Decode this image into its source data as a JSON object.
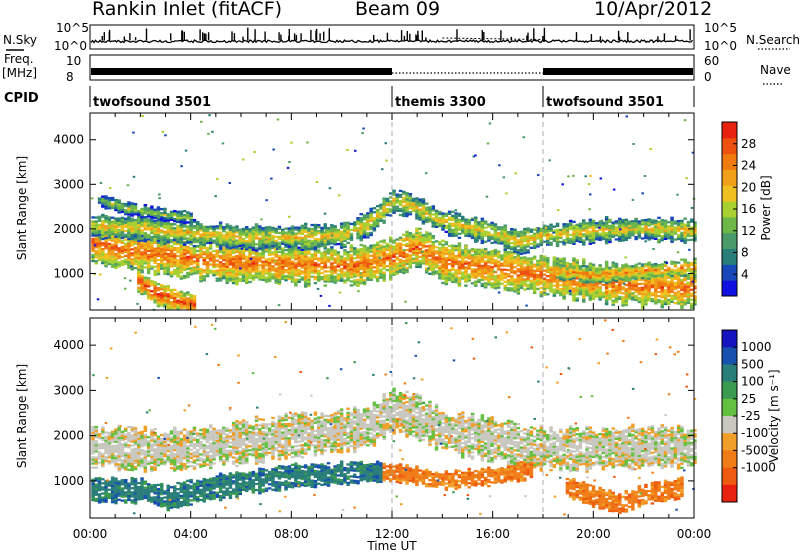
{
  "header": {
    "title": "Rankin Inlet (fitACF)",
    "beam": "Beam 09",
    "date": "10/Apr/2012"
  },
  "strip_nsky": {
    "left_label": "N.Sky",
    "right_label": "N.Search",
    "top_tick": "10^5",
    "bottom_tick": "10^0"
  },
  "strip_freq": {
    "left_label_line1": "Freq.",
    "left_label_line2": "[MHz]",
    "right_label": "Nave",
    "left_top_tick": "10",
    "left_bottom_tick": "8",
    "right_top_tick": "60",
    "right_bottom_tick": "0"
  },
  "cpid": {
    "label": "CPID",
    "segments": [
      {
        "name": "twofsound 3501",
        "start_hour": 0,
        "end_hour": 12
      },
      {
        "name": "themis 3300",
        "start_hour": 12,
        "end_hour": 18
      },
      {
        "name": "twofsound 3501",
        "start_hour": 18,
        "end_hour": 24
      }
    ]
  },
  "chart_data": [
    {
      "type": "heatmap",
      "name": "power-panel",
      "ylabel": "Slant Range [km]",
      "xlim": [
        0,
        24
      ],
      "ylim": [
        180,
        4600
      ],
      "x_ticks": [
        "00:00",
        "04:00",
        "08:00",
        "12:00",
        "16:00",
        "20:00",
        "00:00"
      ],
      "y_ticks": [
        1000,
        2000,
        3000,
        4000
      ],
      "colorbar": {
        "label": "Power [dB]",
        "range": [
          0,
          32
        ],
        "ticks": [
          4,
          8,
          12,
          16,
          20,
          24,
          28
        ],
        "colors": [
          "#1010e0",
          "#1848b8",
          "#2a7e7a",
          "#4a9a6a",
          "#6cb64a",
          "#a8d030",
          "#f0c020",
          "#f0a018",
          "#f07c10",
          "#ee5010",
          "#e82010"
        ]
      },
      "bands": [
        {
          "points": [
            [
              0.0,
              1700
            ],
            [
              1.5,
              1500
            ],
            [
              3.0,
              1400
            ],
            [
              5.0,
              1250
            ],
            [
              7.0,
              1200
            ],
            [
              9.0,
              1180
            ],
            [
              10.5,
              1150
            ],
            [
              12.0,
              1350
            ],
            [
              13.0,
              1600
            ],
            [
              14.0,
              1250
            ],
            [
              16.0,
              1100
            ],
            [
              18.0,
              950
            ],
            [
              20.0,
              800
            ],
            [
              22.0,
              700
            ],
            [
              24.0,
              650
            ]
          ],
          "half_width": 380,
          "power": 26
        },
        {
          "points": [
            [
              0.0,
              2050
            ],
            [
              2.0,
              2000
            ],
            [
              4.0,
              1900
            ],
            [
              6.0,
              1800
            ],
            [
              8.0,
              1800
            ],
            [
              10.0,
              1850
            ],
            [
              11.0,
              2100
            ],
            [
              12.0,
              2600
            ],
            [
              12.6,
              2550
            ],
            [
              14.0,
              2150
            ],
            [
              16.0,
              1900
            ],
            [
              17.0,
              1700
            ],
            [
              18.0,
              1850
            ],
            [
              20.0,
              1950
            ],
            [
              22.0,
              2000
            ],
            [
              24.0,
              1950
            ]
          ],
          "half_width": 230,
          "power": 20
        },
        {
          "points": [
            [
              1.8,
              850
            ],
            [
              2.6,
              550
            ],
            [
              3.4,
              380
            ],
            [
              4.2,
              260
            ]
          ],
          "half_width": 230,
          "power": 28
        },
        {
          "points": [
            [
              18.5,
              1050
            ],
            [
              20.0,
              950
            ],
            [
              22.0,
              1050
            ],
            [
              24.0,
              1150
            ]
          ],
          "half_width": 150,
          "power": 24
        },
        {
          "points": [
            [
              0.2,
              2650
            ],
            [
              1.5,
              2450
            ],
            [
              3.0,
              2300
            ],
            [
              4.0,
              2250
            ]
          ],
          "half_width": 120,
          "power": 16
        }
      ]
    },
    {
      "type": "heatmap",
      "name": "velocity-panel",
      "xlabel": "Time UT",
      "ylabel": "Slant Range [km]",
      "xlim": [
        0,
        24
      ],
      "ylim": [
        180,
        4600
      ],
      "x_ticks": [
        "00:00",
        "04:00",
        "08:00",
        "12:00",
        "16:00",
        "20:00",
        "00:00"
      ],
      "y_ticks": [
        1000,
        2000,
        3000,
        4000
      ],
      "colorbar": {
        "label": "Velocity [m s^-1]",
        "ticks": [
          "1000",
          "500",
          "100",
          "25",
          "-25",
          "-100",
          "-500",
          "-1000"
        ],
        "colors": [
          "#1414c0",
          "#1850b0",
          "#2a7e7a",
          "#3a9a50",
          "#64c040",
          "#c8c8c0",
          "#f0a028",
          "#f07c18",
          "#ee5a10",
          "#e82010"
        ]
      },
      "bands": [
        {
          "points": [
            [
              0.0,
              1750
            ],
            [
              2.0,
              1700
            ],
            [
              4.0,
              1700
            ],
            [
              6.0,
              1850
            ],
            [
              8.0,
              2000
            ],
            [
              10.0,
              2100
            ],
            [
              11.0,
              2200
            ],
            [
              12.0,
              2550
            ],
            [
              13.0,
              2400
            ],
            [
              14.0,
              2100
            ],
            [
              16.0,
              1900
            ],
            [
              18.0,
              1700
            ],
            [
              20.0,
              1700
            ],
            [
              22.0,
              1750
            ],
            [
              24.0,
              1750
            ]
          ],
          "half_width": 400,
          "velocity_class": 5
        },
        {
          "points": [
            [
              0.0,
              800
            ],
            [
              2.0,
              780
            ],
            [
              3.0,
              620
            ],
            [
              4.0,
              750
            ],
            [
              6.0,
              950
            ],
            [
              8.0,
              1100
            ],
            [
              10.0,
              1150
            ],
            [
              11.5,
              1200
            ]
          ],
          "half_width": 230,
          "velocity_class": 2
        },
        {
          "points": [
            [
              11.5,
              1200
            ],
            [
              12.5,
              1150
            ],
            [
              14.0,
              1000
            ],
            [
              16.0,
              1100
            ],
            [
              17.5,
              1250
            ]
          ],
          "half_width": 170,
          "velocity_class": 7
        },
        {
          "points": [
            [
              18.8,
              900
            ],
            [
              20.0,
              650
            ],
            [
              21.0,
              500
            ],
            [
              22.0,
              700
            ],
            [
              23.5,
              850
            ]
          ],
          "half_width": 190,
          "velocity_class": 7
        }
      ]
    }
  ]
}
